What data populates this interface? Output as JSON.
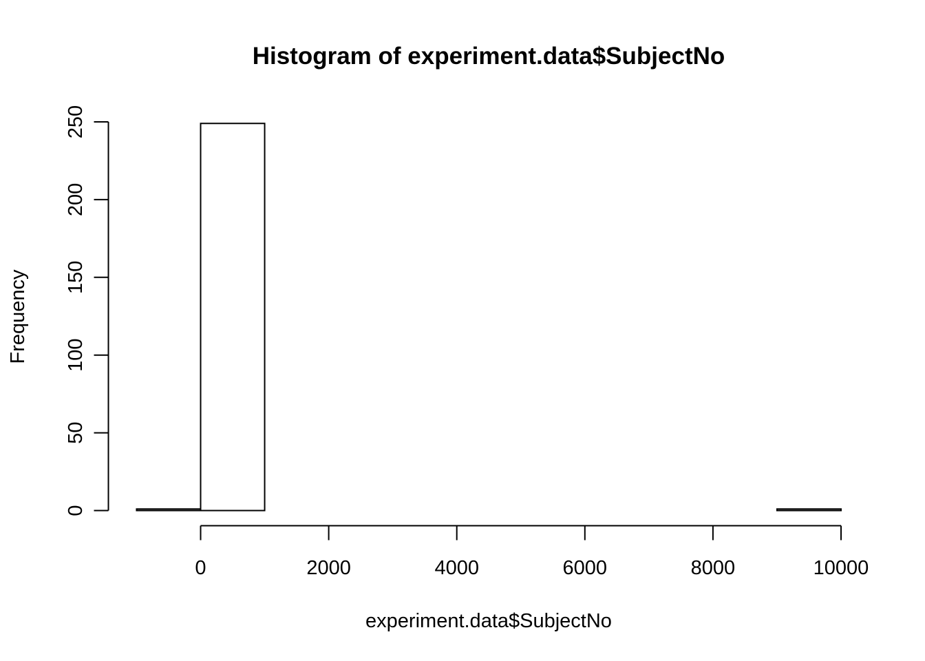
{
  "chart_data": {
    "type": "bar",
    "title": "Histogram of experiment.data$SubjectNo",
    "xlabel": "experiment.data$SubjectNo",
    "ylabel": "Frequency",
    "bins": [
      {
        "start": -1000,
        "end": 0,
        "count": 1
      },
      {
        "start": 0,
        "end": 1000,
        "count": 249
      },
      {
        "start": 1000,
        "end": 2000,
        "count": 0
      },
      {
        "start": 2000,
        "end": 3000,
        "count": 0
      },
      {
        "start": 3000,
        "end": 4000,
        "count": 0
      },
      {
        "start": 4000,
        "end": 5000,
        "count": 0
      },
      {
        "start": 5000,
        "end": 6000,
        "count": 0
      },
      {
        "start": 6000,
        "end": 7000,
        "count": 0
      },
      {
        "start": 7000,
        "end": 8000,
        "count": 0
      },
      {
        "start": 8000,
        "end": 9000,
        "count": 0
      },
      {
        "start": 9000,
        "end": 10000,
        "count": 1
      }
    ],
    "x_ticks": [
      0,
      2000,
      4000,
      6000,
      8000,
      10000
    ],
    "y_ticks": [
      0,
      50,
      100,
      150,
      200,
      250
    ],
    "xlim": [
      -1000,
      10000
    ],
    "ylim": [
      0,
      250
    ],
    "grid": false,
    "legend": "none"
  }
}
